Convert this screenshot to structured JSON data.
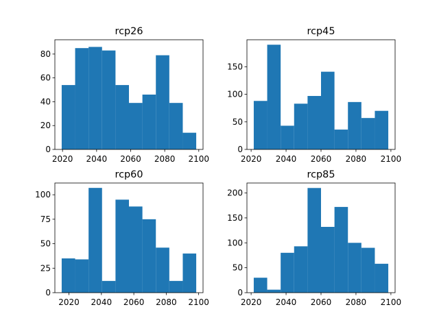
{
  "chart_data": [
    {
      "type": "bar",
      "title": "rcp26",
      "bins": [
        {
          "x0": 2019.5,
          "x1": 2027.4,
          "value": 54
        },
        {
          "x0": 2027.4,
          "x1": 2035.3,
          "value": 85
        },
        {
          "x0": 2035.3,
          "x1": 2043.2,
          "value": 86
        },
        {
          "x0": 2043.2,
          "x1": 2051.1,
          "value": 83
        },
        {
          "x0": 2051.1,
          "x1": 2059.0,
          "value": 54
        },
        {
          "x0": 2059.0,
          "x1": 2066.9,
          "value": 39
        },
        {
          "x0": 2066.9,
          "x1": 2074.8,
          "value": 46
        },
        {
          "x0": 2074.8,
          "x1": 2082.7,
          "value": 79
        },
        {
          "x0": 2082.7,
          "x1": 2090.6,
          "value": 39
        },
        {
          "x0": 2090.6,
          "x1": 2098.5,
          "value": 14
        }
      ],
      "xlim": [
        2015.5,
        2102.5
      ],
      "ylim": [
        0,
        92
      ],
      "xticks": [
        2020,
        2040,
        2060,
        2080,
        2100
      ],
      "yticks": [
        0,
        20,
        40,
        60,
        80
      ],
      "color": "#1f77b4"
    },
    {
      "type": "bar",
      "title": "rcp45",
      "bins": [
        {
          "x0": 2021.5,
          "x1": 2029.2,
          "value": 88
        },
        {
          "x0": 2029.2,
          "x1": 2036.9,
          "value": 190
        },
        {
          "x0": 2036.9,
          "x1": 2044.6,
          "value": 43
        },
        {
          "x0": 2044.6,
          "x1": 2052.3,
          "value": 83
        },
        {
          "x0": 2052.3,
          "x1": 2060.0,
          "value": 97
        },
        {
          "x0": 2060.0,
          "x1": 2067.7,
          "value": 141
        },
        {
          "x0": 2067.7,
          "x1": 2075.4,
          "value": 36
        },
        {
          "x0": 2075.4,
          "x1": 2083.1,
          "value": 86
        },
        {
          "x0": 2083.1,
          "x1": 2090.8,
          "value": 57
        },
        {
          "x0": 2090.8,
          "x1": 2098.5,
          "value": 70
        }
      ],
      "xlim": [
        2017.6,
        2102.4
      ],
      "ylim": [
        0,
        199
      ],
      "xticks": [
        2020,
        2040,
        2060,
        2080,
        2100
      ],
      "yticks": [
        0,
        50,
        100,
        150
      ],
      "color": "#1f77b4"
    },
    {
      "type": "bar",
      "title": "rcp60",
      "bins": [
        {
          "x0": 2015.5,
          "x1": 2023.8,
          "value": 35
        },
        {
          "x0": 2023.8,
          "x1": 2032.1,
          "value": 34
        },
        {
          "x0": 2032.1,
          "x1": 2040.4,
          "value": 107
        },
        {
          "x0": 2040.4,
          "x1": 2048.7,
          "value": 12
        },
        {
          "x0": 2048.7,
          "x1": 2057.0,
          "value": 95
        },
        {
          "x0": 2057.0,
          "x1": 2065.3,
          "value": 88
        },
        {
          "x0": 2065.3,
          "x1": 2073.6,
          "value": 75
        },
        {
          "x0": 2073.6,
          "x1": 2081.9,
          "value": 46
        },
        {
          "x0": 2081.9,
          "x1": 2090.2,
          "value": 12
        },
        {
          "x0": 2090.2,
          "x1": 2098.5,
          "value": 40
        }
      ],
      "xlim": [
        2011.3,
        2102.7
      ],
      "ylim": [
        0,
        112
      ],
      "xticks": [
        2020,
        2040,
        2060,
        2080,
        2100
      ],
      "yticks": [
        0,
        25,
        50,
        75,
        100
      ],
      "color": "#1f77b4"
    },
    {
      "type": "bar",
      "title": "rcp85",
      "bins": [
        {
          "x0": 2021.5,
          "x1": 2029.2,
          "value": 30
        },
        {
          "x0": 2029.2,
          "x1": 2036.9,
          "value": 6
        },
        {
          "x0": 2036.9,
          "x1": 2044.6,
          "value": 80
        },
        {
          "x0": 2044.6,
          "x1": 2052.3,
          "value": 93
        },
        {
          "x0": 2052.3,
          "x1": 2060.0,
          "value": 210
        },
        {
          "x0": 2060.0,
          "x1": 2067.7,
          "value": 132
        },
        {
          "x0": 2067.7,
          "x1": 2075.4,
          "value": 172
        },
        {
          "x0": 2075.4,
          "x1": 2083.1,
          "value": 100
        },
        {
          "x0": 2083.1,
          "x1": 2090.8,
          "value": 90
        },
        {
          "x0": 2090.8,
          "x1": 2098.5,
          "value": 58
        }
      ],
      "xlim": [
        2017.6,
        2102.4
      ],
      "ylim": [
        0,
        220
      ],
      "xticks": [
        2020,
        2040,
        2060,
        2080,
        2100
      ],
      "yticks": [
        0,
        50,
        100,
        150,
        200
      ],
      "color": "#1f77b4"
    }
  ]
}
